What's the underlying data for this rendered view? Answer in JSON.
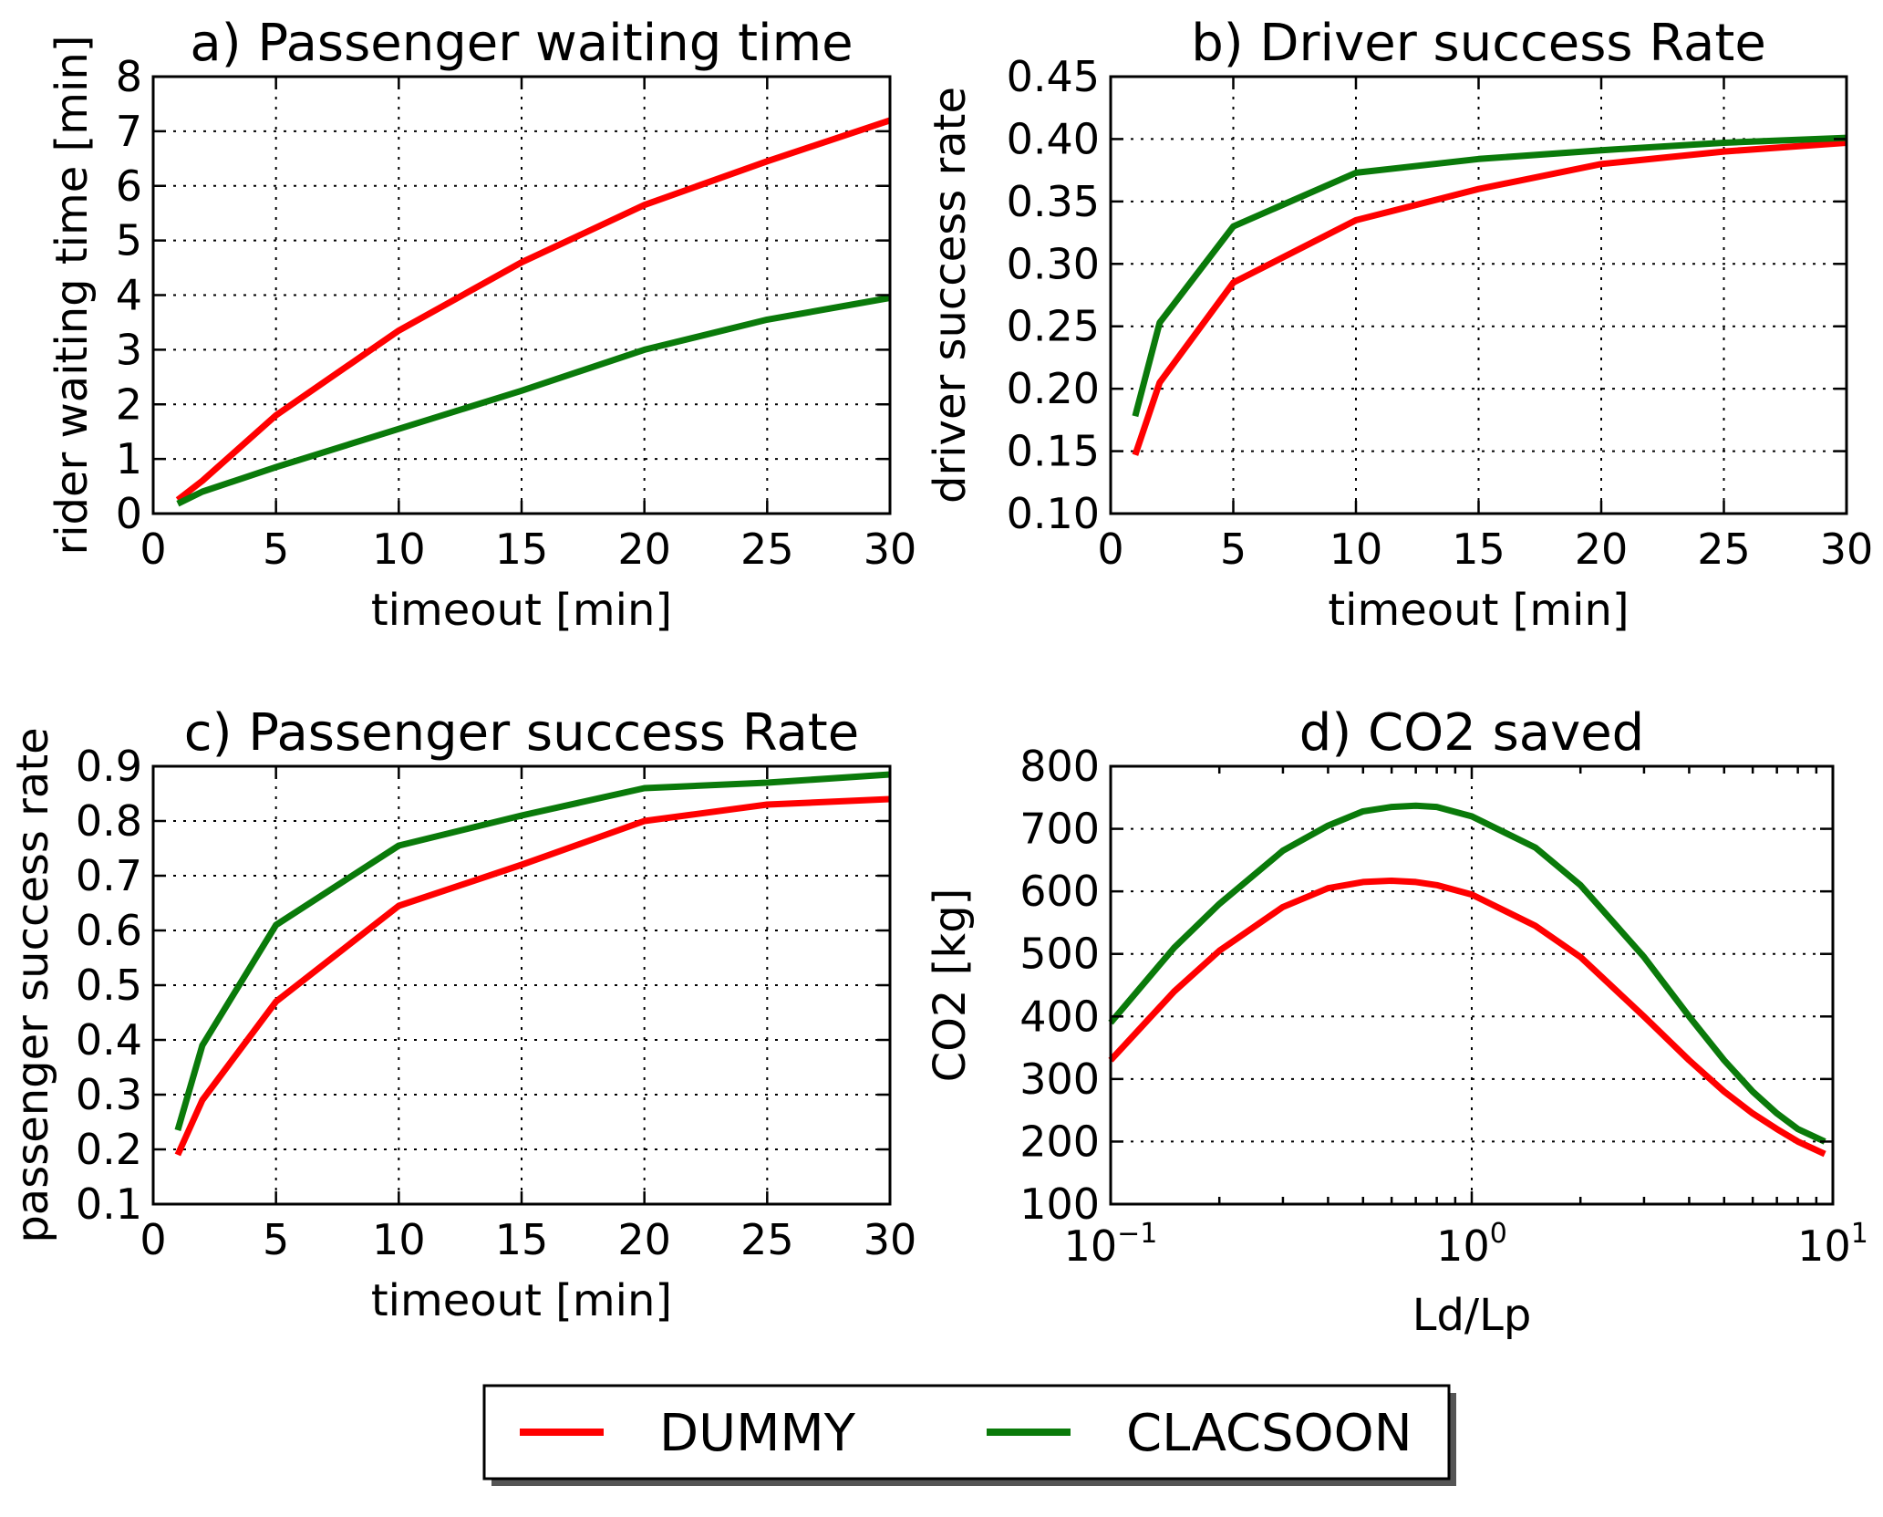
{
  "colors": {
    "dummy": "#ff0000",
    "clacsoon": "#0a7a0a"
  },
  "legend": {
    "entries": [
      {
        "name": "DUMMY",
        "color_key": "dummy"
      },
      {
        "name": "CLACSOON",
        "color_key": "clacsoon"
      }
    ]
  },
  "chart_data": [
    {
      "id": "a",
      "type": "line",
      "title": "a) Passenger waiting time",
      "xlabel": "timeout [min]",
      "ylabel": "rider waiting time [min]",
      "xscale": "linear",
      "xlim": [
        0,
        30
      ],
      "ylim": [
        0,
        8
      ],
      "xticks": [
        0,
        5,
        10,
        15,
        20,
        25,
        30
      ],
      "xtick_labels": [
        "0",
        "5",
        "10",
        "15",
        "20",
        "25",
        "30"
      ],
      "yticks": [
        0,
        1,
        2,
        3,
        4,
        5,
        6,
        7,
        8
      ],
      "ytick_labels": [
        "0",
        "1",
        "2",
        "3",
        "4",
        "5",
        "6",
        "7",
        "8"
      ],
      "grid": true,
      "series": [
        {
          "name": "DUMMY",
          "color_key": "dummy",
          "x": [
            1,
            2,
            5,
            10,
            15,
            20,
            25,
            30
          ],
          "y": [
            0.25,
            0.6,
            1.8,
            3.35,
            4.6,
            5.65,
            6.45,
            7.2
          ]
        },
        {
          "name": "CLACSOON",
          "color_key": "clacsoon",
          "x": [
            1,
            2,
            5,
            10,
            15,
            20,
            25,
            30
          ],
          "y": [
            0.18,
            0.4,
            0.85,
            1.55,
            2.25,
            3.0,
            3.55,
            3.95
          ]
        }
      ]
    },
    {
      "id": "b",
      "type": "line",
      "title": "b) Driver success Rate",
      "xlabel": "timeout [min]",
      "ylabel": "driver success rate",
      "xscale": "linear",
      "xlim": [
        0,
        30
      ],
      "ylim": [
        0.1,
        0.45
      ],
      "xticks": [
        0,
        5,
        10,
        15,
        20,
        25,
        30
      ],
      "xtick_labels": [
        "0",
        "5",
        "10",
        "15",
        "20",
        "25",
        "30"
      ],
      "yticks": [
        0.1,
        0.15,
        0.2,
        0.25,
        0.3,
        0.35,
        0.4,
        0.45
      ],
      "ytick_labels": [
        "0.10",
        "0.15",
        "0.20",
        "0.25",
        "0.30",
        "0.35",
        "0.40",
        "0.45"
      ],
      "grid": true,
      "series": [
        {
          "name": "DUMMY",
          "color_key": "dummy",
          "x": [
            1,
            2,
            5,
            10,
            15,
            20,
            25,
            30
          ],
          "y": [
            0.147,
            0.205,
            0.285,
            0.335,
            0.36,
            0.38,
            0.39,
            0.397
          ]
        },
        {
          "name": "CLACSOON",
          "color_key": "clacsoon",
          "x": [
            1,
            2,
            5,
            10,
            15,
            20,
            25,
            30
          ],
          "y": [
            0.178,
            0.253,
            0.33,
            0.373,
            0.384,
            0.391,
            0.397,
            0.401
          ]
        }
      ]
    },
    {
      "id": "c",
      "type": "line",
      "title": "c) Passenger success Rate",
      "xlabel": "timeout [min]",
      "ylabel": "passenger success rate",
      "xscale": "linear",
      "xlim": [
        0,
        30
      ],
      "ylim": [
        0.1,
        0.9
      ],
      "xticks": [
        0,
        5,
        10,
        15,
        20,
        25,
        30
      ],
      "xtick_labels": [
        "0",
        "5",
        "10",
        "15",
        "20",
        "25",
        "30"
      ],
      "yticks": [
        0.1,
        0.2,
        0.3,
        0.4,
        0.5,
        0.6,
        0.7,
        0.8,
        0.9
      ],
      "ytick_labels": [
        "0.1",
        "0.2",
        "0.3",
        "0.4",
        "0.5",
        "0.6",
        "0.7",
        "0.8",
        "0.9"
      ],
      "grid": true,
      "series": [
        {
          "name": "DUMMY",
          "color_key": "dummy",
          "x": [
            1,
            2,
            5,
            10,
            15,
            20,
            25,
            30
          ],
          "y": [
            0.19,
            0.29,
            0.47,
            0.645,
            0.72,
            0.8,
            0.83,
            0.84
          ]
        },
        {
          "name": "CLACSOON",
          "color_key": "clacsoon",
          "x": [
            1,
            2,
            5,
            10,
            15,
            20,
            25,
            30
          ],
          "y": [
            0.235,
            0.39,
            0.61,
            0.755,
            0.81,
            0.86,
            0.87,
            0.885
          ]
        }
      ]
    },
    {
      "id": "d",
      "type": "line",
      "title": "d) CO2 saved",
      "xlabel": "Ld/Lp",
      "ylabel": "CO2 [kg]",
      "xscale": "log",
      "xlim": [
        0.1,
        10
      ],
      "ylim": [
        100,
        800
      ],
      "xticks": [
        0.1,
        1,
        10
      ],
      "xtick_labels": [
        {
          "base": "10",
          "exp": "−1"
        },
        {
          "base": "10",
          "exp": "0"
        },
        {
          "base": "10",
          "exp": "1"
        }
      ],
      "yticks": [
        100,
        200,
        300,
        400,
        500,
        600,
        700,
        800
      ],
      "ytick_labels": [
        "100",
        "200",
        "300",
        "400",
        "500",
        "600",
        "700",
        "800"
      ],
      "grid": true,
      "series": [
        {
          "name": "DUMMY",
          "color_key": "dummy",
          "x": [
            0.1,
            0.15,
            0.2,
            0.3,
            0.4,
            0.5,
            0.6,
            0.7,
            0.8,
            1.0,
            1.5,
            2.0,
            3.0,
            4.0,
            5.0,
            6.0,
            7.0,
            8.0,
            9.5
          ],
          "y": [
            330,
            440,
            505,
            575,
            605,
            615,
            617,
            615,
            610,
            595,
            545,
            495,
            400,
            330,
            280,
            245,
            220,
            200,
            180
          ]
        },
        {
          "name": "CLACSOON",
          "color_key": "clacsoon",
          "x": [
            0.1,
            0.15,
            0.2,
            0.3,
            0.4,
            0.5,
            0.6,
            0.7,
            0.8,
            1.0,
            1.5,
            2.0,
            3.0,
            4.0,
            5.0,
            6.0,
            7.0,
            8.0,
            9.5
          ],
          "y": [
            390,
            510,
            580,
            665,
            705,
            728,
            735,
            737,
            735,
            720,
            670,
            610,
            495,
            400,
            330,
            280,
            245,
            220,
            200
          ]
        }
      ]
    }
  ]
}
